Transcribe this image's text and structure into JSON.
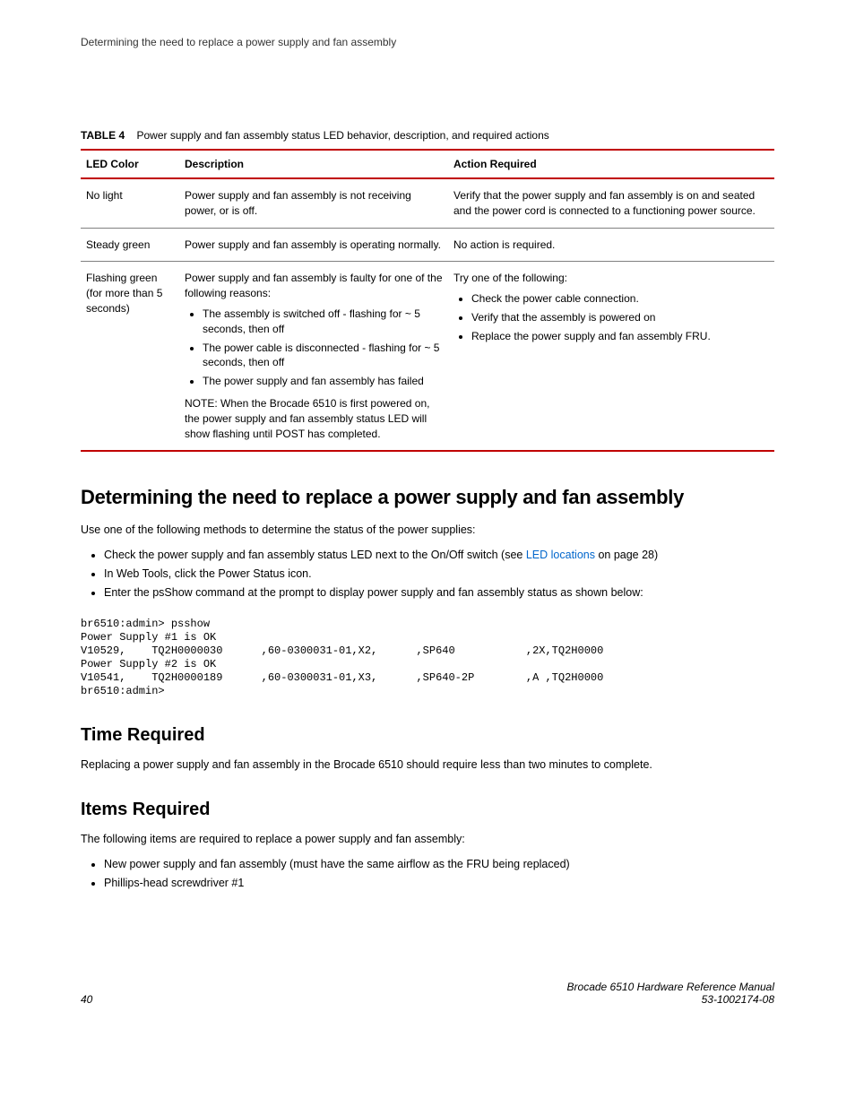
{
  "colors": {
    "rule": "#c00000",
    "row_border": "#808080",
    "link": "#0066cc",
    "text": "#000000",
    "bg": "#ffffff"
  },
  "running_header": "Determining the need to replace a power supply and fan assembly",
  "table_caption": {
    "label": "TABLE 4",
    "text": "Power supply and fan assembly status LED behavior, description, and required actions"
  },
  "table": {
    "headers": [
      "LED Color",
      "Description",
      "Action Required"
    ],
    "rows": [
      {
        "led": "No light",
        "desc_text": "Power supply and fan assembly is not receiving power, or is off.",
        "action_text": "Verify that the power supply and fan assembly is on and seated and the power cord is connected to a functioning power source."
      },
      {
        "led": "Steady green",
        "desc_text": "Power supply and fan assembly is operating normally.",
        "action_text": "No action is required."
      },
      {
        "led": "Flashing green (for more than 5 seconds)",
        "desc_intro": "Power supply and fan assembly is faulty for one of the following reasons:",
        "desc_items": [
          "The assembly is switched off - flashing for ~ 5 seconds, then off",
          "The power cable is disconnected - flashing for ~ 5 seconds, then off",
          "The power supply and fan assembly has failed"
        ],
        "desc_note": "NOTE: When the Brocade 6510 is first powered on, the power supply and fan assembly status LED will show flashing until POST has completed.",
        "action_intro": "Try one of the following:",
        "action_items": [
          "Check the power cable connection.",
          "Verify that the assembly is powered on",
          "Replace the power supply and fan assembly FRU."
        ]
      }
    ]
  },
  "section1": {
    "heading": "Determining the need to replace a power supply and fan assembly",
    "intro": "Use one of the following methods to determine the status of the power supplies:",
    "bullets": {
      "b1_pre": "Check the power supply and fan assembly status LED next to the On/Off switch (see ",
      "b1_link": "LED locations",
      "b1_post": " on page 28)",
      "b2": "In Web Tools, click the Power Status icon.",
      "b3": "Enter the psShow command at the prompt to display power supply and fan assembly status as shown below:"
    },
    "code": "br6510:admin> psshow\nPower Supply #1 is OK\nV10529,    TQ2H0000030      ,60-0300031-01,X2,      ,SP640           ,2X,TQ2H0000\nPower Supply #2 is OK\nV10541,    TQ2H0000189      ,60-0300031-01,X3,      ,SP640-2P        ,A ,TQ2H0000\nbr6510:admin>"
  },
  "section2": {
    "heading": "Time Required",
    "para": "Replacing a power supply and fan assembly in the Brocade 6510 should require less than two minutes to complete."
  },
  "section3": {
    "heading": "Items Required",
    "intro": "The following items are required to replace a power supply and fan assembly:",
    "bullets": [
      "New power supply and fan assembly (must have the same airflow as the FRU being replaced)",
      "Phillips-head screwdriver #1"
    ]
  },
  "footer": {
    "page_num": "40",
    "manual": "Brocade 6510 Hardware Reference Manual",
    "docnum": "53-1002174-08"
  }
}
